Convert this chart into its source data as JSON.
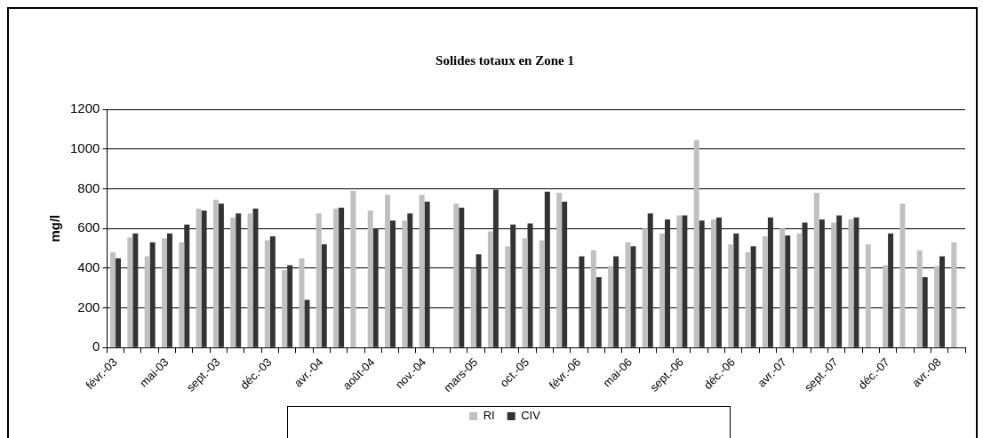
{
  "chart_data": {
    "type": "bar",
    "title": "Solides totaux en Zone 1",
    "ylabel": "mg/l",
    "categories": [
      "févr.-03",
      null,
      null,
      "mai-03",
      null,
      null,
      "sept.-03",
      null,
      null,
      "déc.-03",
      null,
      null,
      "avr.-04",
      null,
      null,
      "août-04",
      null,
      null,
      "nov.-04",
      null,
      null,
      "mars-05",
      null,
      null,
      "oct.-05",
      null,
      null,
      "févr.-06",
      null,
      null,
      "mai-06",
      null,
      null,
      "sept.-06",
      null,
      null,
      "déc.-06",
      null,
      null,
      "avr.-07",
      null,
      null,
      "sept.-07",
      null,
      null,
      "déc.-07",
      null,
      null,
      "avr.-08",
      null
    ],
    "series": [
      {
        "name": "RI",
        "color": "#c0c0c0",
        "values": [
          480,
          555,
          460,
          550,
          530,
          700,
          745,
          655,
          675,
          540,
          390,
          450,
          675,
          700,
          790,
          690,
          770,
          640,
          770,
          null,
          725,
          400,
          585,
          510,
          550,
          540,
          780,
          null,
          490,
          410,
          530,
          600,
          575,
          665,
          1045,
          645,
          520,
          480,
          560,
          600,
          575,
          780,
          630,
          645,
          520,
          415,
          725,
          490,
          410,
          530
        ]
      },
      {
        "name": "CIV",
        "color": "#333333",
        "values": [
          450,
          575,
          530,
          575,
          620,
          690,
          725,
          675,
          700,
          560,
          415,
          240,
          520,
          705,
          null,
          600,
          640,
          675,
          735,
          null,
          705,
          470,
          795,
          620,
          625,
          785,
          735,
          460,
          355,
          460,
          510,
          675,
          645,
          665,
          640,
          655,
          575,
          510,
          655,
          565,
          630,
          645,
          665,
          655,
          null,
          575,
          null,
          355,
          460,
          null
        ]
      }
    ],
    "ylim": [
      0,
      1200
    ],
    "yticks": [
      0,
      200,
      400,
      600,
      800,
      1000,
      1200
    ],
    "grid": "y",
    "legend": "bottom"
  }
}
